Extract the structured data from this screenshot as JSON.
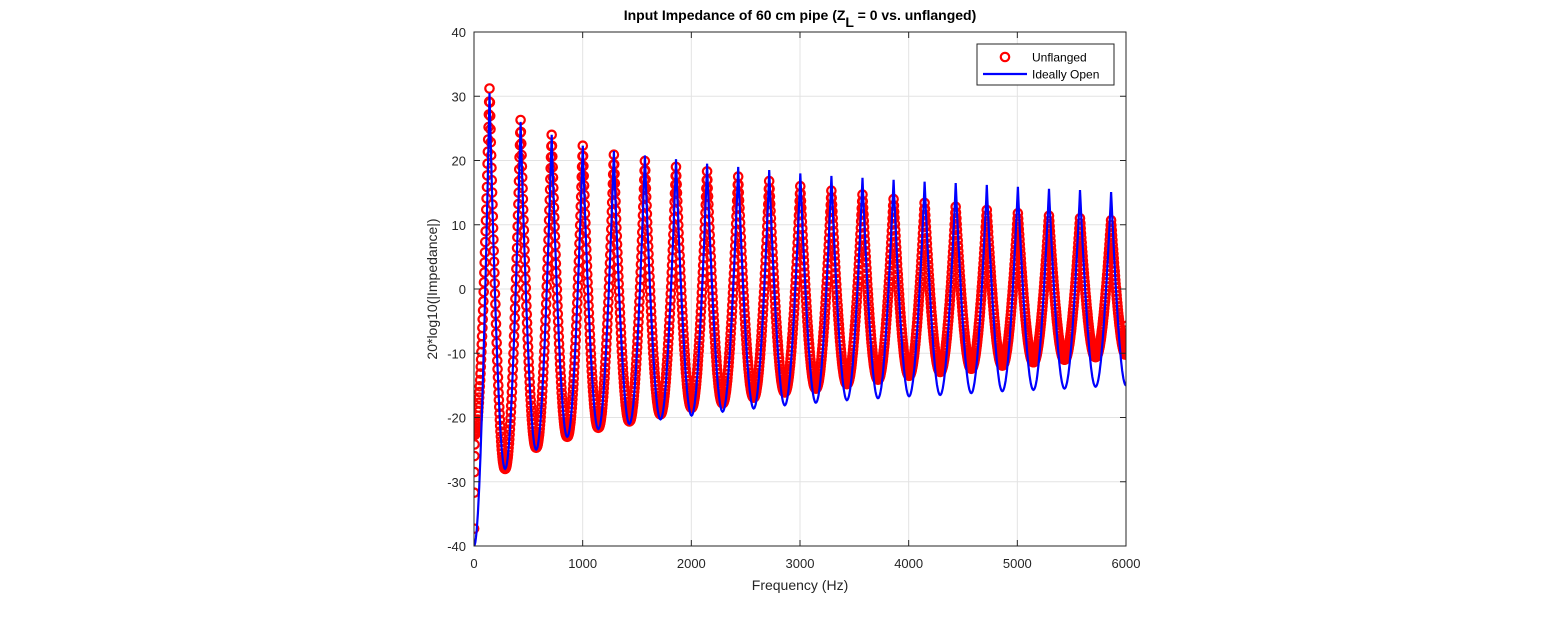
{
  "chart_data": {
    "type": "line",
    "title": {
      "prefix": "Input Impedance of 60 cm pipe (Z",
      "subscript": "L",
      "suffix": " = 0 vs. unflanged)"
    },
    "xlabel": "Frequency (Hz)",
    "ylabel": "20*log10(|Impedance|)",
    "xlim": [
      0,
      6000
    ],
    "ylim": [
      -40,
      40
    ],
    "xticks": [
      0,
      1000,
      2000,
      3000,
      4000,
      5000,
      6000
    ],
    "yticks": [
      -40,
      -30,
      -20,
      -10,
      0,
      10,
      20,
      30,
      40
    ],
    "grid": true,
    "legend_position": "top-right",
    "series": [
      {
        "name": "Unflanged",
        "style": "markers",
        "marker": "circle",
        "color": "#ff0000",
        "peaks": [
          {
            "f": 143,
            "db": 31.2
          },
          {
            "f": 429,
            "db": 26.3
          },
          {
            "f": 715,
            "db": 24.0
          },
          {
            "f": 1001,
            "db": 22.3
          },
          {
            "f": 1287,
            "db": 20.9
          },
          {
            "f": 1573,
            "db": 19.9
          },
          {
            "f": 1859,
            "db": 19.0
          },
          {
            "f": 2145,
            "db": 18.3
          },
          {
            "f": 2431,
            "db": 17.5
          },
          {
            "f": 2717,
            "db": 16.8
          },
          {
            "f": 3003,
            "db": 16.0
          },
          {
            "f": 3289,
            "db": 15.3
          },
          {
            "f": 3575,
            "db": 14.7
          },
          {
            "f": 3861,
            "db": 14.0
          },
          {
            "f": 4147,
            "db": 13.4
          },
          {
            "f": 4433,
            "db": 12.8
          },
          {
            "f": 4719,
            "db": 12.3
          },
          {
            "f": 5005,
            "db": 11.8
          },
          {
            "f": 5291,
            "db": 11.4
          },
          {
            "f": 5577,
            "db": 11.0
          },
          {
            "f": 5863,
            "db": 10.7
          }
        ],
        "troughs": [
          {
            "f": 286,
            "db": -28.0
          },
          {
            "f": 572,
            "db": -24.7
          },
          {
            "f": 858,
            "db": -23.0
          },
          {
            "f": 1144,
            "db": -21.6
          },
          {
            "f": 1430,
            "db": -20.6
          },
          {
            "f": 1716,
            "db": -19.5
          },
          {
            "f": 2002,
            "db": -18.5
          },
          {
            "f": 2288,
            "db": -17.8
          },
          {
            "f": 2574,
            "db": -16.9
          },
          {
            "f": 2860,
            "db": -16.1
          },
          {
            "f": 3146,
            "db": -15.5
          },
          {
            "f": 3432,
            "db": -14.8
          },
          {
            "f": 3718,
            "db": -14.1
          },
          {
            "f": 4004,
            "db": -13.5
          },
          {
            "f": 4290,
            "db": -12.9
          },
          {
            "f": 4576,
            "db": -12.4
          },
          {
            "f": 4862,
            "db": -11.9
          },
          {
            "f": 5148,
            "db": -11.4
          },
          {
            "f": 5434,
            "db": -11.0
          },
          {
            "f": 5720,
            "db": -10.6
          },
          {
            "f": 6000,
            "db": -10.2
          }
        ],
        "low_frequency_points": [
          {
            "f": 1,
            "db": -37.3
          },
          {
            "f": 2,
            "db": -31.7
          },
          {
            "f": 3,
            "db": -28.5
          },
          {
            "f": 4,
            "db": -26.0
          },
          {
            "f": 5,
            "db": -24.2
          },
          {
            "f": 6,
            "db": -22.7
          }
        ]
      },
      {
        "name": "Ideally Open",
        "style": "line",
        "color": "#0000ff",
        "peaks": [
          {
            "f": 143,
            "db": 30.5
          },
          {
            "f": 429,
            "db": 26.0
          },
          {
            "f": 715,
            "db": 24.0
          },
          {
            "f": 1001,
            "db": 22.3
          },
          {
            "f": 1287,
            "db": 21.5
          },
          {
            "f": 1573,
            "db": 20.8
          },
          {
            "f": 1859,
            "db": 20.2
          },
          {
            "f": 2145,
            "db": 19.5
          },
          {
            "f": 2431,
            "db": 19.0
          },
          {
            "f": 2717,
            "db": 18.5
          },
          {
            "f": 3003,
            "db": 18.0
          },
          {
            "f": 3289,
            "db": 17.6
          },
          {
            "f": 3575,
            "db": 17.3
          },
          {
            "f": 3861,
            "db": 17.0
          },
          {
            "f": 4147,
            "db": 16.7
          },
          {
            "f": 4433,
            "db": 16.5
          },
          {
            "f": 4719,
            "db": 16.2
          },
          {
            "f": 5005,
            "db": 15.9
          },
          {
            "f": 5291,
            "db": 15.6
          },
          {
            "f": 5577,
            "db": 15.4
          },
          {
            "f": 5863,
            "db": 15.1
          }
        ],
        "troughs": [
          {
            "f": 286,
            "db": -28.0
          },
          {
            "f": 572,
            "db": -25.0
          },
          {
            "f": 858,
            "db": -23.0
          },
          {
            "f": 1144,
            "db": -21.8
          },
          {
            "f": 1430,
            "db": -21.0
          },
          {
            "f": 1716,
            "db": -20.3
          },
          {
            "f": 2002,
            "db": -19.7
          },
          {
            "f": 2288,
            "db": -19.1
          },
          {
            "f": 2574,
            "db": -18.6
          },
          {
            "f": 2860,
            "db": -18.1
          },
          {
            "f": 3146,
            "db": -17.7
          },
          {
            "f": 3432,
            "db": -17.3
          },
          {
            "f": 3718,
            "db": -17.0
          },
          {
            "f": 4004,
            "db": -16.7
          },
          {
            "f": 4290,
            "db": -16.5
          },
          {
            "f": 4576,
            "db": -16.2
          },
          {
            "f": 4862,
            "db": -15.9
          },
          {
            "f": 5148,
            "db": -15.7
          },
          {
            "f": 5434,
            "db": -15.5
          },
          {
            "f": 5720,
            "db": -15.2
          },
          {
            "f": 6000,
            "db": -15.0
          }
        ],
        "start": {
          "f": 0,
          "db": -40
        }
      }
    ]
  }
}
